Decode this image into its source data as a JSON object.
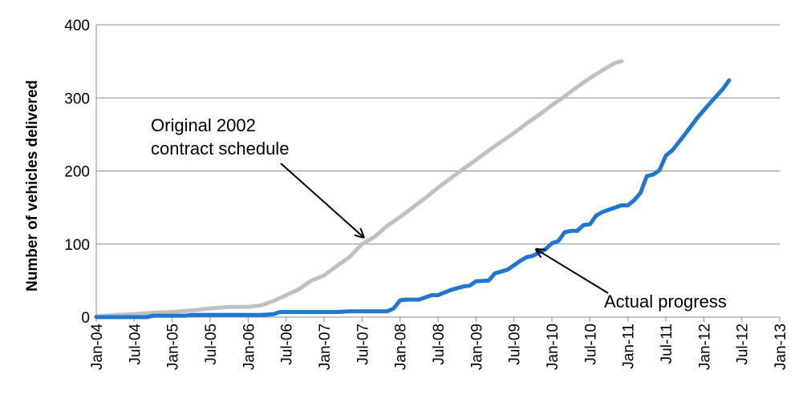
{
  "chart_data": {
    "type": "line",
    "title": "",
    "xlabel": "",
    "ylabel": "Number of vehicles delivered",
    "ylim": [
      0,
      400
    ],
    "yticks": [
      "0",
      "100",
      "200",
      "300",
      "400"
    ],
    "xlim": [
      "2004-01",
      "2013-01"
    ],
    "xticks": [
      "Jan-04",
      "Jul-04",
      "Jan-05",
      "Jul-05",
      "Jan-06",
      "Jul-06",
      "Jan-07",
      "Jul-07",
      "Jan-08",
      "Jul-08",
      "Jan-09",
      "Jul-09",
      "Jan-10",
      "Jul-10",
      "Jan-11",
      "Jul-11",
      "Jan-12",
      "Jul-12",
      "Jan-13"
    ],
    "grid": "horizontal",
    "legend": "none",
    "series": [
      {
        "name": "Original 2002 contract schedule",
        "color": "#c0c0c0",
        "points": [
          [
            "2004-01",
            1
          ],
          [
            "2004-04",
            3
          ],
          [
            "2004-07",
            4
          ],
          [
            "2004-10",
            6
          ],
          [
            "2005-01",
            7
          ],
          [
            "2005-04",
            9
          ],
          [
            "2005-07",
            12
          ],
          [
            "2005-10",
            14
          ],
          [
            "2006-01",
            14
          ],
          [
            "2006-03",
            16
          ],
          [
            "2006-05",
            22
          ],
          [
            "2006-07",
            30
          ],
          [
            "2006-09",
            38
          ],
          [
            "2006-11",
            50
          ],
          [
            "2007-01",
            57
          ],
          [
            "2007-03",
            70
          ],
          [
            "2007-05",
            82
          ],
          [
            "2007-07",
            100
          ],
          [
            "2007-09",
            110
          ],
          [
            "2007-11",
            125
          ],
          [
            "2008-01",
            137
          ],
          [
            "2008-03",
            150
          ],
          [
            "2008-05",
            163
          ],
          [
            "2008-07",
            177
          ],
          [
            "2008-09",
            190
          ],
          [
            "2008-11",
            203
          ],
          [
            "2009-01",
            215
          ],
          [
            "2009-03",
            228
          ],
          [
            "2009-05",
            240
          ],
          [
            "2009-07",
            252
          ],
          [
            "2009-09",
            265
          ],
          [
            "2009-11",
            277
          ],
          [
            "2010-01",
            290
          ],
          [
            "2010-03",
            302
          ],
          [
            "2010-05",
            315
          ],
          [
            "2010-07",
            327
          ],
          [
            "2010-09",
            338
          ],
          [
            "2010-11",
            348
          ],
          [
            "2010-12",
            350
          ]
        ]
      },
      {
        "name": "Actual progress",
        "color": "#1f77d4",
        "points": [
          [
            "2004-01",
            0
          ],
          [
            "2004-06",
            0
          ],
          [
            "2004-09",
            0
          ],
          [
            "2004-10",
            2
          ],
          [
            "2005-03",
            2
          ],
          [
            "2005-04",
            3
          ],
          [
            "2006-03",
            3
          ],
          [
            "2006-05",
            4
          ],
          [
            "2006-06",
            7
          ],
          [
            "2007-03",
            7
          ],
          [
            "2007-05",
            8
          ],
          [
            "2007-11",
            8
          ],
          [
            "2007-12",
            12
          ],
          [
            "2008-01",
            23
          ],
          [
            "2008-02",
            24
          ],
          [
            "2008-04",
            24
          ],
          [
            "2008-06",
            30
          ],
          [
            "2008-07",
            30
          ],
          [
            "2008-09",
            37
          ],
          [
            "2008-11",
            42
          ],
          [
            "2008-12",
            43
          ],
          [
            "2009-01",
            49
          ],
          [
            "2009-03",
            50
          ],
          [
            "2009-04",
            60
          ],
          [
            "2009-06",
            65
          ],
          [
            "2009-08",
            77
          ],
          [
            "2009-09",
            82
          ],
          [
            "2009-10",
            84
          ],
          [
            "2009-12",
            93
          ],
          [
            "2010-01",
            101
          ],
          [
            "2010-02",
            104
          ],
          [
            "2010-03",
            116
          ],
          [
            "2010-04",
            118
          ],
          [
            "2010-05",
            118
          ],
          [
            "2010-06",
            126
          ],
          [
            "2010-07",
            127
          ],
          [
            "2010-08",
            139
          ],
          [
            "2010-09",
            144
          ],
          [
            "2010-11",
            150
          ],
          [
            "2010-12",
            153
          ],
          [
            "2011-01",
            153
          ],
          [
            "2011-02",
            160
          ],
          [
            "2011-03",
            170
          ],
          [
            "2011-04",
            193
          ],
          [
            "2011-05",
            195
          ],
          [
            "2011-06",
            201
          ],
          [
            "2011-07",
            221
          ],
          [
            "2011-08",
            228
          ],
          [
            "2011-10",
            250
          ],
          [
            "2011-12",
            273
          ],
          [
            "2012-02",
            293
          ],
          [
            "2012-04",
            312
          ],
          [
            "2012-05",
            324
          ]
        ]
      }
    ],
    "annotations": [
      {
        "lines": [
          "Original 2002",
          "contract schedule"
        ],
        "points_to": "Original 2002 contract schedule",
        "target": [
          "2007-07",
          107
        ]
      },
      {
        "lines": [
          "Actual progress"
        ],
        "points_to": "Actual progress",
        "target": [
          "2009-10",
          95
        ]
      }
    ]
  }
}
